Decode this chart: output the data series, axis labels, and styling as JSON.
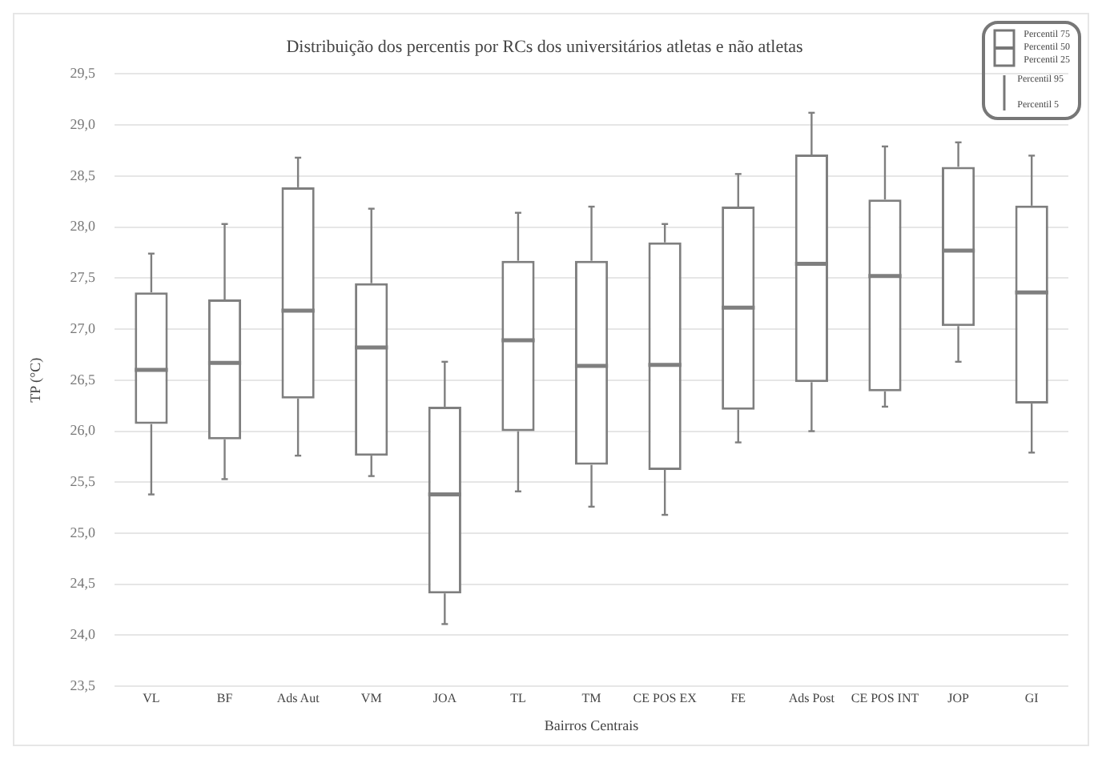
{
  "chart_data": {
    "type": "box",
    "title": "Distribuição dos percentis por RCs dos universitários atletas e não atletas",
    "xlabel": "Bairros Centrais",
    "ylabel": "TP (°C)",
    "categories": [
      "VL",
      "BF",
      "Ads Aut",
      "VM",
      "JOA",
      "TL",
      "TM",
      "CE POS EX",
      "FE",
      "Ads Post",
      "CE POS INT",
      "JOP",
      "GI"
    ],
    "color": "#7f7f7f",
    "boxes": [
      {
        "low": 25.38,
        "q1": 26.07,
        "median": 26.6,
        "q3": 27.36,
        "high": 27.74
      },
      {
        "low": 25.53,
        "q1": 25.92,
        "median": 26.67,
        "q3": 27.29,
        "high": 28.03
      },
      {
        "low": 25.76,
        "q1": 26.32,
        "median": 27.18,
        "q3": 28.39,
        "high": 28.68
      },
      {
        "low": 25.56,
        "q1": 25.76,
        "median": 26.82,
        "q3": 27.45,
        "high": 28.18
      },
      {
        "low": 24.11,
        "q1": 24.41,
        "median": 25.38,
        "q3": 26.24,
        "high": 26.68
      },
      {
        "low": 25.41,
        "q1": 26.0,
        "median": 26.89,
        "q3": 27.67,
        "high": 28.14
      },
      {
        "low": 25.26,
        "q1": 25.67,
        "median": 26.64,
        "q3": 27.67,
        "high": 28.2
      },
      {
        "low": 25.18,
        "q1": 25.62,
        "median": 26.65,
        "q3": 27.85,
        "high": 28.03
      },
      {
        "low": 25.89,
        "q1": 26.21,
        "median": 27.21,
        "q3": 28.2,
        "high": 28.52
      },
      {
        "low": 26.0,
        "q1": 26.48,
        "median": 27.64,
        "q3": 28.71,
        "high": 29.12
      },
      {
        "low": 26.24,
        "q1": 26.39,
        "median": 27.52,
        "q3": 28.27,
        "high": 28.79
      },
      {
        "low": 26.68,
        "q1": 27.03,
        "median": 27.77,
        "q3": 28.59,
        "high": 28.83
      },
      {
        "low": 25.79,
        "q1": 26.27,
        "median": 27.36,
        "q3": 28.21,
        "high": 28.7
      }
    ],
    "ylim": [
      23.5,
      29.5
    ],
    "yticks": [
      {
        "value": 23.5,
        "label": "23,5"
      },
      {
        "value": 24,
        "label": "24,0"
      },
      {
        "value": 24.5,
        "label": "24,5"
      },
      {
        "value": 25,
        "label": "25,0"
      },
      {
        "value": 25.5,
        "label": "25,5"
      },
      {
        "value": 26,
        "label": "26,0"
      },
      {
        "value": 26.5,
        "label": "26,5"
      },
      {
        "value": 27,
        "label": "27,0"
      },
      {
        "value": 27.5,
        "label": "27,5"
      },
      {
        "value": 28,
        "label": "28,0"
      },
      {
        "value": 28.5,
        "label": "28,5"
      },
      {
        "value": 29,
        "label": "29,0"
      },
      {
        "value": 29.5,
        "label": "29,5"
      }
    ],
    "grid": "y",
    "annotations": [
      "Percentil 75",
      "Percentil 50",
      "Percentil 25",
      "Percentil 95",
      "Percentil 5"
    ]
  }
}
